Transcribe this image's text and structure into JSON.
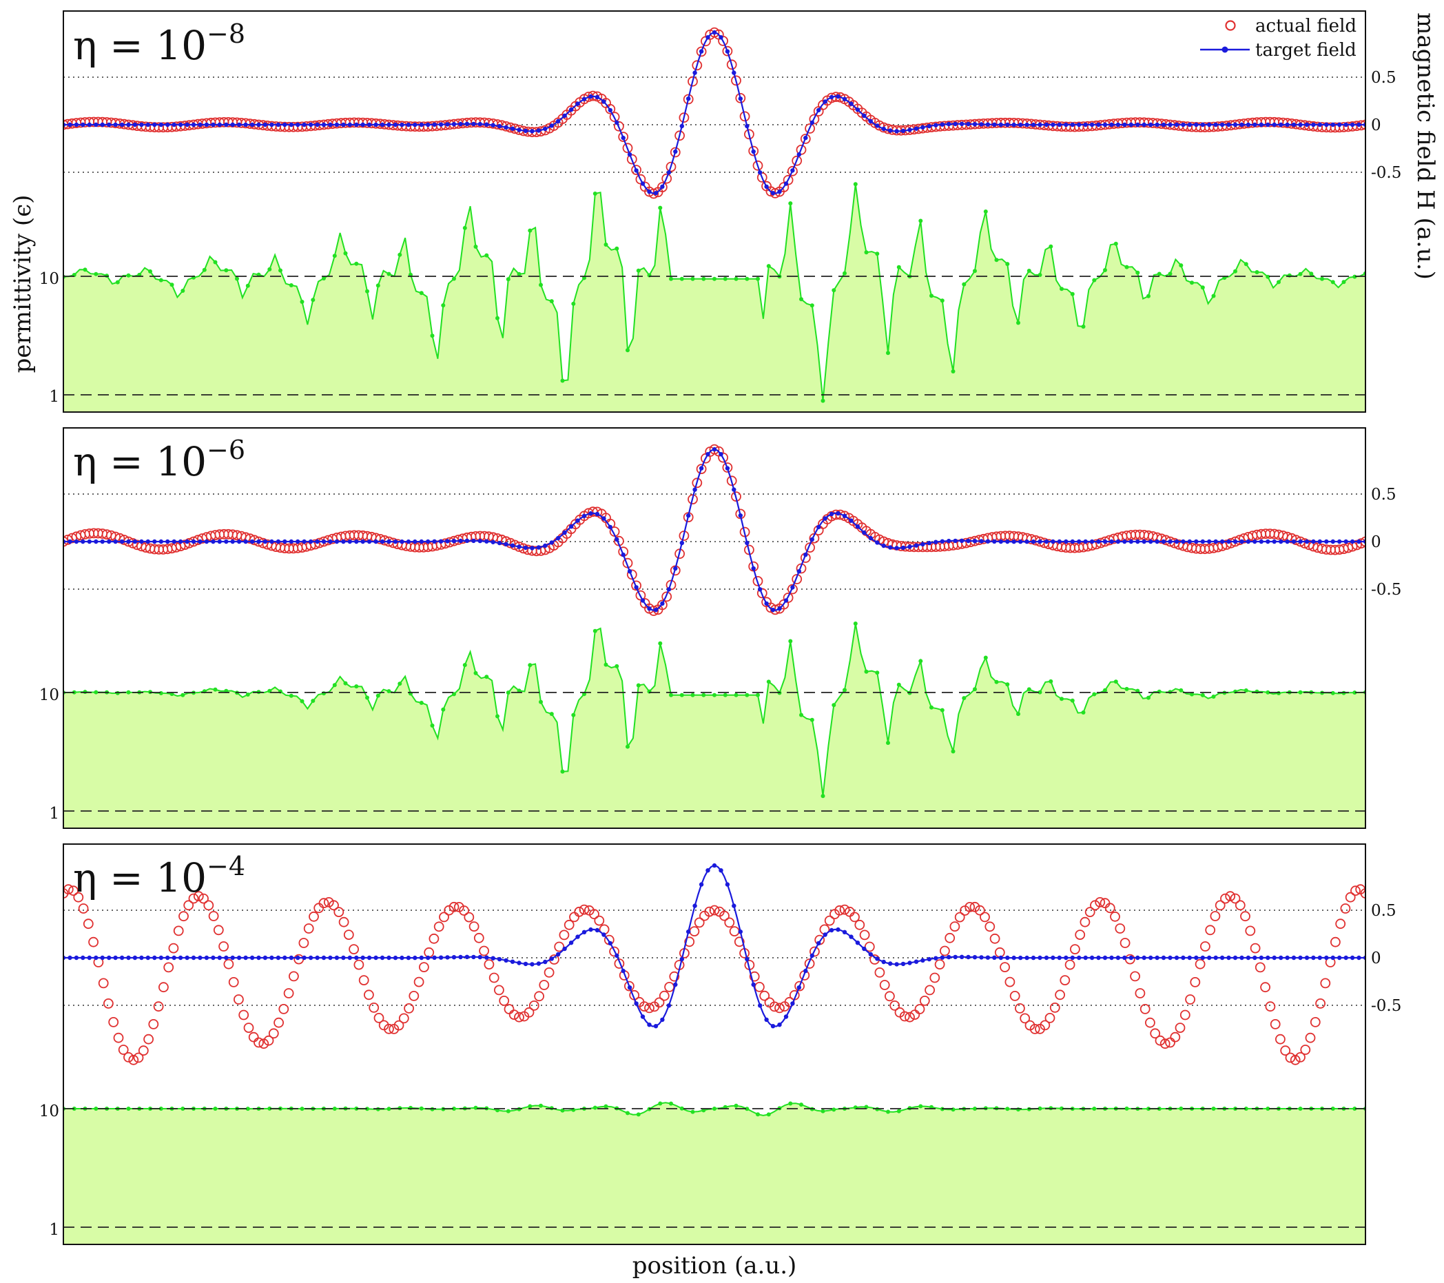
{
  "chart_data": {
    "type": "line",
    "shared": {
      "xlabel": "position (a.u.)",
      "ylabel_left": "permittivity (ϵ)",
      "ylabel_right": "magnetic field H (a.u.)",
      "legend": [
        "actual field",
        "target field"
      ],
      "legend_placement": "top-right",
      "left_axis_scale": "log",
      "left_ticks": [
        "1",
        "10"
      ],
      "right_ticks": [
        "0.5",
        "0",
        "-0.5"
      ],
      "reference_lines": {
        "field": [
          -0.5,
          0,
          0.5
        ],
        "permittivity": [
          1,
          10
        ]
      },
      "colors": {
        "actual": "#e03030",
        "target": "#1a1adc",
        "permittivity_line": "#22e022",
        "permittivity_fill": "#d8fca6"
      }
    },
    "panels": [
      {
        "eta_base": "η = 10",
        "eta_exp": "−8",
        "target_field": {
          "envelope_width": 0.23,
          "wavelength": 0.099,
          "peak": 0.97
        },
        "actual_field": {
          "residual_amplitude": 0.03,
          "residual_wavelength": 0.05
        },
        "permittivity": {
          "background": 10,
          "min": 1,
          "max": 60,
          "modulation_width": 0.3
        }
      },
      {
        "eta_base": "η = 10",
        "eta_exp": "−6",
        "target_field": {
          "envelope_width": 0.23,
          "wavelength": 0.099,
          "peak": 0.97
        },
        "actual_field": {
          "residual_amplitude": 0.09,
          "residual_wavelength": 0.05
        },
        "permittivity": {
          "background": 10,
          "min": 1.5,
          "max": 40,
          "modulation_width": 0.22
        }
      },
      {
        "eta_base": "η = 10",
        "eta_exp": "−4",
        "target_field": {
          "envelope_width": 0.23,
          "wavelength": 0.099,
          "peak": 0.97
        },
        "actual_field": {
          "amplitude_center": 0.5,
          "amplitude_edge": 0.95,
          "offset": -0.25
        },
        "permittivity": {
          "background": 10,
          "min": 8.5,
          "max": 12,
          "modulation_width": 0.16
        }
      }
    ]
  }
}
